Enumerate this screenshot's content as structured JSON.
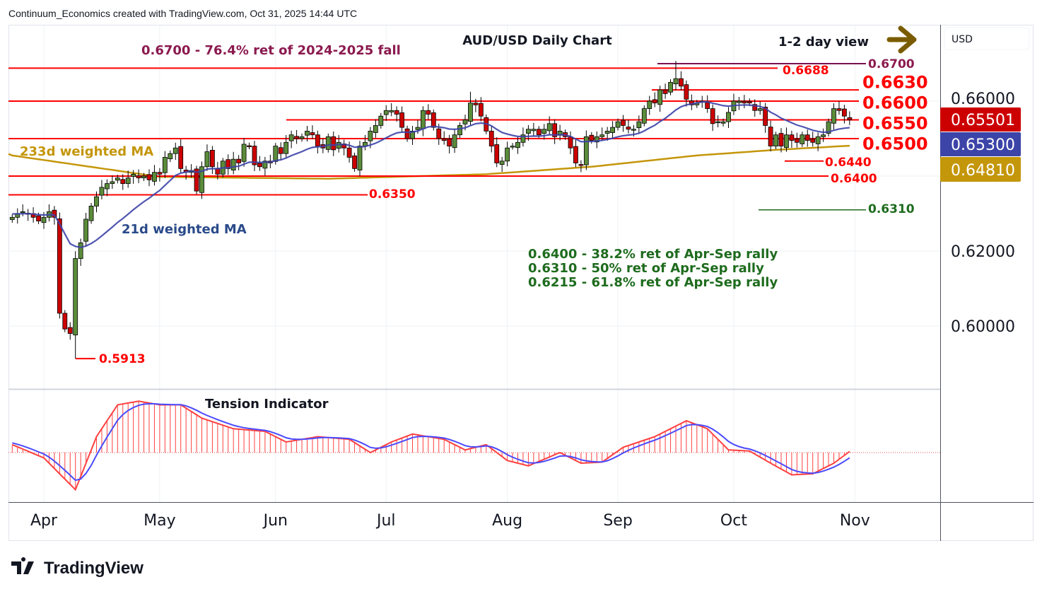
{
  "header": {
    "credit": "Continuum_Economics created with TradingView.com, Oct 31, 2025 14:44 UTC"
  },
  "logo": {
    "text": "TradingView"
  },
  "currency_button": "USD",
  "colors": {
    "up": "#5b8c3a",
    "down": "#cc0000",
    "ma21": "#3c44a8",
    "ma233": "#c4960a",
    "level": "#ff0000",
    "fib": "#7a1050",
    "support2": "#1e6b1e",
    "arrow": "#7a5c00"
  },
  "chart_data": {
    "type": "candlestick",
    "title": "AUD/USD Daily Chart",
    "subtitle": "1-2 day view",
    "view_arrow": "right-arrow",
    "ylim": [
      0.582,
      0.677
    ],
    "y_ticks": [
      "0.66000",
      "0.62000",
      "0.60000"
    ],
    "y_tick_values": [
      0.66,
      0.62,
      0.6
    ],
    "x_ticks": [
      {
        "label": "Apr",
        "index": 6
      },
      {
        "label": "May",
        "index": 28
      },
      {
        "label": "Jun",
        "index": 50
      },
      {
        "label": "Jul",
        "index": 71
      },
      {
        "label": "Aug",
        "index": 94
      },
      {
        "label": "Sep",
        "index": 115
      },
      {
        "label": "Oct",
        "index": 137
      },
      {
        "label": "Nov",
        "index": 160
      }
    ],
    "first_bar": "Mar 24 2025",
    "last_bar": "Oct 31 2025",
    "closes": [
      0.629,
      0.63,
      0.6305,
      0.63,
      0.629,
      0.628,
      0.629,
      0.6305,
      0.629,
      0.6034,
      0.5992,
      0.598,
      0.618,
      0.6222,
      0.6285,
      0.632,
      0.6345,
      0.637,
      0.638,
      0.6385,
      0.6395,
      0.638,
      0.6395,
      0.6405,
      0.6395,
      0.64,
      0.639,
      0.641,
      0.6405,
      0.645,
      0.646,
      0.6475,
      0.642,
      0.641,
      0.6415,
      0.636,
      0.6425,
      0.6465,
      0.6425,
      0.6405,
      0.644,
      0.642,
      0.6445,
      0.6435,
      0.6485,
      0.648,
      0.643,
      0.6425,
      0.644,
      0.6435,
      0.648,
      0.646,
      0.649,
      0.651,
      0.65,
      0.6505,
      0.652,
      0.651,
      0.648,
      0.6475,
      0.6505,
      0.647,
      0.649,
      0.6475,
      0.645,
      0.642,
      0.648,
      0.649,
      0.652,
      0.6535,
      0.656,
      0.6575,
      0.6575,
      0.6565,
      0.653,
      0.65,
      0.652,
      0.653,
      0.6575,
      0.6565,
      0.653,
      0.65,
      0.6495,
      0.648,
      0.651,
      0.6535,
      0.655,
      0.6595,
      0.659,
      0.656,
      0.652,
      0.648,
      0.6435,
      0.644,
      0.6475,
      0.648,
      0.649,
      0.651,
      0.6525,
      0.6525,
      0.651,
      0.6525,
      0.654,
      0.6505,
      0.652,
      0.6505,
      0.6475,
      0.6435,
      0.643,
      0.6505,
      0.6495,
      0.6505,
      0.651,
      0.652,
      0.653,
      0.6545,
      0.6535,
      0.6525,
      0.6525,
      0.6545,
      0.658,
      0.66,
      0.6595,
      0.663,
      0.662,
      0.665,
      0.666,
      0.664,
      0.6605,
      0.659,
      0.6595,
      0.66,
      0.658,
      0.654,
      0.6545,
      0.6545,
      0.657,
      0.66,
      0.66,
      0.6595,
      0.6595,
      0.6575,
      0.658,
      0.6535,
      0.648,
      0.651,
      0.648,
      0.651,
      0.6495,
      0.649,
      0.651,
      0.6495,
      0.649,
      0.6505,
      0.651,
      0.6545,
      0.658,
      0.6575,
      0.656,
      0.655
    ],
    "wick": 0.0014,
    "extremes": [
      {
        "index": 12,
        "low": 0.5913
      },
      {
        "index": 126,
        "high": 0.6707
      },
      {
        "index": 87,
        "high": 0.6625
      }
    ],
    "ma233_anchors": [
      [
        0,
        0.6455
      ],
      [
        28,
        0.6398
      ],
      [
        60,
        0.6393
      ],
      [
        90,
        0.6405
      ],
      [
        110,
        0.6425
      ],
      [
        130,
        0.6455
      ],
      [
        145,
        0.647
      ],
      [
        159,
        0.6481
      ]
    ],
    "series_labels": {
      "ma233": "233d weighted MA",
      "ma21": "21d weighted MA"
    },
    "price_badges": [
      {
        "value": "0.65501",
        "color": "#cc0000"
      },
      {
        "value": "0.65300",
        "color": "#3c44a8"
      },
      {
        "value": "0.64810",
        "color": "#c4960a"
      }
    ],
    "levels": [
      {
        "value": 0.67,
        "label": "0.6700",
        "kind": "fib"
      },
      {
        "value": 0.6688,
        "label": "0.6688",
        "kind": "resistance"
      },
      {
        "value": 0.663,
        "label": "0.6630",
        "kind": "resistance"
      },
      {
        "value": 0.66,
        "label": "0.6600",
        "kind": "resistance"
      },
      {
        "value": 0.655,
        "label": "0.6550",
        "kind": "resistance"
      },
      {
        "value": 0.65,
        "label": "0.6500",
        "kind": "support"
      },
      {
        "value": 0.644,
        "label": "0.6440",
        "kind": "support"
      },
      {
        "value": 0.64,
        "label": "0.6400",
        "kind": "support"
      },
      {
        "value": 0.635,
        "label": "0.6350",
        "kind": "support"
      },
      {
        "value": 0.631,
        "label": "0.6310",
        "kind": "support2"
      },
      {
        "value": 0.5913,
        "label": "0.5913",
        "kind": "low"
      }
    ],
    "annotations": {
      "fib_top": "0.6700 - 76.4% ret of 2024-2025 fall",
      "rally": [
        "0.6400 - 38.2% ret of Apr-Sep rally",
        "0.6310 - 50% ret of Apr-Sep rally",
        "0.6215 - 61.8% ret of Apr-Sep rally"
      ]
    },
    "indicator": {
      "title": "Tension Indicator",
      "anchors": [
        [
          0,
          0.15
        ],
        [
          6,
          -0.1
        ],
        [
          9,
          -0.4
        ],
        [
          12,
          -0.7
        ],
        [
          16,
          0.3
        ],
        [
          20,
          0.9
        ],
        [
          24,
          0.97
        ],
        [
          28,
          0.9
        ],
        [
          32,
          0.9
        ],
        [
          36,
          0.65
        ],
        [
          42,
          0.45
        ],
        [
          48,
          0.4
        ],
        [
          52,
          0.2
        ],
        [
          58,
          0.3
        ],
        [
          64,
          0.25
        ],
        [
          68,
          0.0
        ],
        [
          72,
          0.2
        ],
        [
          76,
          0.35
        ],
        [
          82,
          0.25
        ],
        [
          86,
          0.05
        ],
        [
          90,
          0.15
        ],
        [
          94,
          -0.15
        ],
        [
          98,
          -0.25
        ],
        [
          104,
          0.0
        ],
        [
          108,
          -0.2
        ],
        [
          112,
          -0.18
        ],
        [
          116,
          0.1
        ],
        [
          122,
          0.3
        ],
        [
          128,
          0.6
        ],
        [
          132,
          0.45
        ],
        [
          136,
          0.05
        ],
        [
          140,
          0.03
        ],
        [
          144,
          -0.2
        ],
        [
          148,
          -0.42
        ],
        [
          152,
          -0.4
        ],
        [
          156,
          -0.2
        ],
        [
          159,
          0.02
        ]
      ]
    }
  }
}
